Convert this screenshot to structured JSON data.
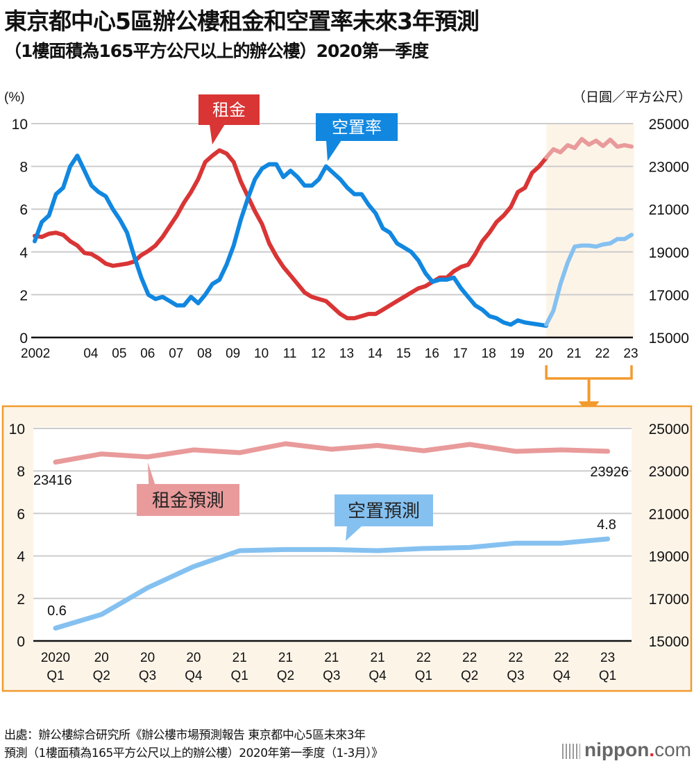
{
  "header": {
    "title": "東京都中心5區辦公樓租金和空置率未來3年預測",
    "subtitle": "（1樓面積為165平方公尺以上的辦公樓）2020第一季度"
  },
  "colors": {
    "rent": "#d93535",
    "vacancy": "#1187e0",
    "rent_forecast": "#e99a9a",
    "vacancy_forecast": "#85c1f0",
    "forecast_bg": "#fdf4e8",
    "accent_orange": "#f29a2e",
    "grid": "#cccccc"
  },
  "chart_data": [
    {
      "type": "line",
      "title": "東京都中心5區辦公樓租金和空置率",
      "left_axis_label": "(%)",
      "right_axis_label": "（日圓／平方公尺）",
      "ylim_left": [
        0,
        10
      ],
      "yticks_left": [
        "0",
        "2",
        "4",
        "6",
        "8",
        "10"
      ],
      "ylim_right": [
        15000,
        25000
      ],
      "yticks_right": [
        "15000",
        "17000",
        "19000",
        "21000",
        "23000",
        "25000"
      ],
      "xlim": [
        2002,
        2023
      ],
      "xticks": [
        {
          "x": 2002,
          "label": "2002"
        },
        {
          "x": 2004,
          "label": "04"
        },
        {
          "x": 2005,
          "label": "05"
        },
        {
          "x": 2006,
          "label": "06"
        },
        {
          "x": 2007,
          "label": "07"
        },
        {
          "x": 2008,
          "label": "08"
        },
        {
          "x": 2009,
          "label": "09"
        },
        {
          "x": 2010,
          "label": "10"
        },
        {
          "x": 2011,
          "label": "11"
        },
        {
          "x": 2012,
          "label": "12"
        },
        {
          "x": 2013,
          "label": "13"
        },
        {
          "x": 2014,
          "label": "14"
        },
        {
          "x": 2015,
          "label": "15"
        },
        {
          "x": 2016,
          "label": "16"
        },
        {
          "x": 2017,
          "label": "17"
        },
        {
          "x": 2018,
          "label": "18"
        },
        {
          "x": 2019,
          "label": "19"
        },
        {
          "x": 2020,
          "label": "20"
        },
        {
          "x": 2021,
          "label": "21"
        },
        {
          "x": 2022,
          "label": "22"
        },
        {
          "x": 2023,
          "label": "23"
        }
      ],
      "grid": true,
      "forecast_region": [
        2020,
        2023
      ],
      "series": [
        {
          "name": "空置率",
          "axis": "left",
          "label": "空置率",
          "x": [
            2002,
            2002.25,
            2002.5,
            2002.75,
            2003,
            2003.25,
            2003.5,
            2003.75,
            2004,
            2004.25,
            2004.5,
            2004.75,
            2005,
            2005.25,
            2005.5,
            2005.75,
            2006,
            2006.25,
            2006.5,
            2006.75,
            2007,
            2007.25,
            2007.5,
            2007.75,
            2008,
            2008.25,
            2008.5,
            2008.75,
            2009,
            2009.25,
            2009.5,
            2009.75,
            2010,
            2010.25,
            2010.5,
            2010.75,
            2011,
            2011.25,
            2011.5,
            2011.75,
            2012,
            2012.25,
            2012.5,
            2012.75,
            2013,
            2013.25,
            2013.5,
            2013.75,
            2014,
            2014.25,
            2014.5,
            2014.75,
            2015,
            2015.25,
            2015.5,
            2015.75,
            2016,
            2016.25,
            2016.5,
            2016.75,
            2017,
            2017.25,
            2017.5,
            2017.75,
            2018,
            2018.25,
            2018.5,
            2018.75,
            2019,
            2019.25,
            2019.5,
            2019.75,
            2020
          ],
          "values": [
            4.5,
            5.4,
            5.7,
            6.7,
            7.0,
            8.0,
            8.5,
            7.8,
            7.1,
            6.8,
            6.6,
            6.0,
            5.5,
            4.9,
            3.8,
            2.8,
            2.0,
            1.8,
            1.9,
            1.7,
            1.5,
            1.5,
            1.9,
            1.6,
            2.0,
            2.5,
            2.7,
            3.4,
            4.3,
            5.5,
            6.5,
            7.4,
            7.9,
            8.1,
            8.1,
            7.5,
            7.8,
            7.5,
            7.1,
            7.1,
            7.4,
            8.0,
            7.7,
            7.4,
            7.0,
            6.7,
            6.7,
            6.2,
            5.8,
            5.1,
            4.9,
            4.4,
            4.2,
            4.0,
            3.6,
            3.0,
            2.6,
            2.7,
            2.7,
            2.8,
            2.3,
            1.9,
            1.5,
            1.3,
            1.0,
            0.9,
            0.7,
            0.6,
            0.8,
            0.7,
            0.65,
            0.6,
            0.55
          ]
        },
        {
          "name": "租金",
          "axis": "right",
          "label": "租金",
          "x": [
            2002,
            2002.25,
            2002.5,
            2002.75,
            2003,
            2003.25,
            2003.5,
            2003.75,
            2004,
            2004.25,
            2004.5,
            2004.75,
            2005,
            2005.25,
            2005.5,
            2005.75,
            2006,
            2006.25,
            2006.5,
            2006.75,
            2007,
            2007.25,
            2007.5,
            2007.75,
            2008,
            2008.25,
            2008.5,
            2008.75,
            2009,
            2009.25,
            2009.5,
            2009.75,
            2010,
            2010.25,
            2010.5,
            2010.75,
            2011,
            2011.25,
            2011.5,
            2011.75,
            2012,
            2012.25,
            2012.5,
            2012.75,
            2013,
            2013.25,
            2013.5,
            2013.75,
            2014,
            2014.25,
            2014.5,
            2014.75,
            2015,
            2015.25,
            2015.5,
            2015.75,
            2016,
            2016.25,
            2016.5,
            2016.75,
            2017,
            2017.25,
            2017.5,
            2017.75,
            2018,
            2018.25,
            2018.5,
            2018.75,
            2019,
            2019.25,
            2019.5,
            2019.75,
            2020
          ],
          "values": [
            19750,
            19700,
            19850,
            19900,
            19800,
            19500,
            19300,
            18950,
            18900,
            18700,
            18450,
            18350,
            18400,
            18450,
            18550,
            18850,
            19050,
            19300,
            19700,
            20200,
            20700,
            21300,
            21800,
            22400,
            23200,
            23500,
            23750,
            23600,
            23200,
            22300,
            21600,
            20900,
            20300,
            19400,
            18800,
            18300,
            17900,
            17500,
            17100,
            16900,
            16800,
            16700,
            16400,
            16100,
            15900,
            15900,
            16000,
            16100,
            16100,
            16300,
            16500,
            16700,
            16900,
            17100,
            17300,
            17400,
            17600,
            17800,
            17800,
            18100,
            18300,
            18400,
            18900,
            19500,
            19900,
            20400,
            20700,
            21100,
            21800,
            22000,
            22700,
            23000,
            23400
          ]
        },
        {
          "name": "空置預測",
          "axis": "left",
          "x": [
            2020,
            2020.25,
            2020.5,
            2020.75,
            2021,
            2021.25,
            2021.5,
            2021.75,
            2022,
            2022.25,
            2022.5,
            2022.75,
            2023
          ],
          "values": [
            0.6,
            1.25,
            2.5,
            3.5,
            4.25,
            4.3,
            4.3,
            4.25,
            4.35,
            4.4,
            4.6,
            4.6,
            4.8
          ]
        },
        {
          "name": "租金預測",
          "axis": "right",
          "x": [
            2020,
            2020.25,
            2020.5,
            2020.75,
            2021,
            2021.25,
            2021.5,
            2021.75,
            2022,
            2022.25,
            2022.5,
            2022.75,
            2023
          ],
          "values": [
            23416,
            23800,
            23660,
            23990,
            23860,
            24280,
            24020,
            24200,
            23950,
            24250,
            23920,
            23990,
            23926
          ]
        }
      ]
    },
    {
      "type": "line",
      "title": "預測放大（2020 Q1 – 2023 Q1）",
      "ylim_left": [
        0,
        10
      ],
      "yticks_left": [
        "0",
        "2",
        "4",
        "6",
        "8",
        "10"
      ],
      "ylim_right": [
        15000,
        25000
      ],
      "yticks_right": [
        "15000",
        "17000",
        "19000",
        "21000",
        "23000",
        "25000"
      ],
      "categories": [
        {
          "top": "2020",
          "bottom": "Q1"
        },
        {
          "top": "20",
          "bottom": "Q2"
        },
        {
          "top": "20",
          "bottom": "Q3"
        },
        {
          "top": "20",
          "bottom": "Q4"
        },
        {
          "top": "21",
          "bottom": "Q1"
        },
        {
          "top": "21",
          "bottom": "Q2"
        },
        {
          "top": "21",
          "bottom": "Q3"
        },
        {
          "top": "21",
          "bottom": "Q4"
        },
        {
          "top": "22",
          "bottom": "Q1"
        },
        {
          "top": "22",
          "bottom": "Q2"
        },
        {
          "top": "22",
          "bottom": "Q3"
        },
        {
          "top": "22",
          "bottom": "Q4"
        },
        {
          "top": "23",
          "bottom": "Q1"
        }
      ],
      "grid": true,
      "series": [
        {
          "name": "租金預測",
          "axis": "right",
          "label": "租金預測",
          "values": [
            23416,
            23800,
            23660,
            23990,
            23860,
            24280,
            24020,
            24200,
            23950,
            24250,
            23920,
            23990,
            23926
          ],
          "annotations": [
            {
              "index": 0,
              "text": "23416"
            },
            {
              "index": 12,
              "text": "23926"
            }
          ]
        },
        {
          "name": "空置預測",
          "axis": "left",
          "label": "空置預測",
          "values": [
            0.6,
            1.25,
            2.5,
            3.5,
            4.25,
            4.3,
            4.3,
            4.25,
            4.35,
            4.4,
            4.6,
            4.6,
            4.8
          ],
          "annotations": [
            {
              "index": 0,
              "text": "0.6"
            },
            {
              "index": 12,
              "text": "4.8"
            }
          ]
        }
      ]
    }
  ],
  "footer": {
    "source_line1": "出處：辦公樓綜合研究所《辦公樓市場預測報告 東京都中心5區未來3年",
    "source_line2": "預測（1樓面積為165平方公尺以上的辦公樓）2020年第一季度（1-3月）》",
    "logo_main": "nippon",
    "logo_dot": ".",
    "logo_suffix": "com"
  }
}
